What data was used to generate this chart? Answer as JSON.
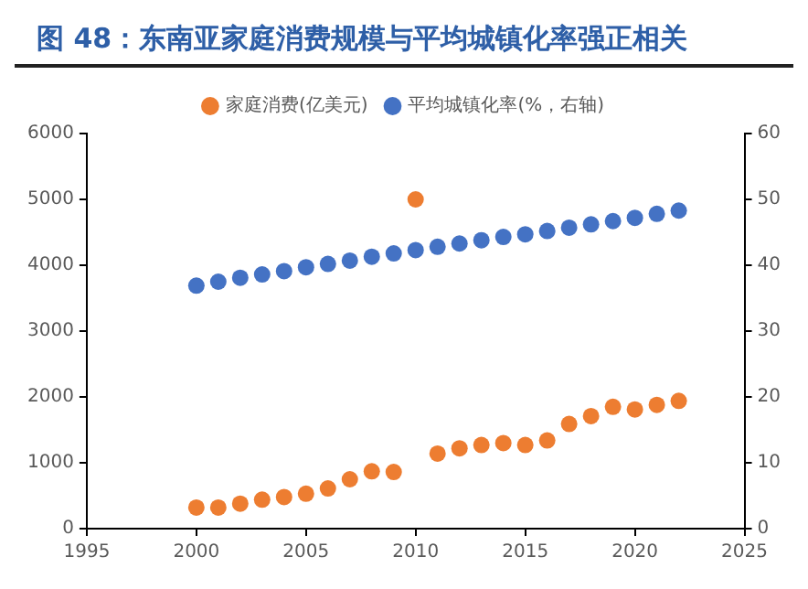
{
  "chart_data": {
    "type": "scatter",
    "title": "图 48：东南亚家庭消费规模与平均城镇化率强正相关",
    "x": [
      2000,
      2001,
      2002,
      2003,
      2004,
      2005,
      2006,
      2007,
      2008,
      2009,
      2010,
      2011,
      2012,
      2013,
      2014,
      2015,
      2016,
      2017,
      2018,
      2019,
      2020,
      2021,
      2022
    ],
    "series": [
      {
        "name": "家庭消费(亿美元)",
        "color": "#ed7d31",
        "values": [
          320,
          320,
          380,
          440,
          480,
          530,
          610,
          750,
          870,
          860,
          5000,
          1140,
          1220,
          1270,
          1300,
          1270,
          1340,
          1590,
          1710,
          1850,
          1810,
          1880,
          1940
        ]
      },
      {
        "name": "平均城镇化率(%，右轴)",
        "color": "#4472c4",
        "axis": "y2",
        "values": [
          36.9,
          37.5,
          38.1,
          38.6,
          39.1,
          39.7,
          40.2,
          40.7,
          41.3,
          41.8,
          42.3,
          42.8,
          43.3,
          43.8,
          44.3,
          44.7,
          45.2,
          45.7,
          46.2,
          46.7,
          47.2,
          47.8,
          48.3
        ]
      }
    ],
    "xlim": [
      1995,
      2025
    ],
    "xticks": [
      1995,
      2000,
      2005,
      2010,
      2015,
      2020,
      2025
    ],
    "ylim": [
      0,
      6000
    ],
    "yticks": [
      0,
      1000,
      2000,
      3000,
      4000,
      5000,
      6000
    ],
    "y2lim": [
      0,
      60
    ],
    "y2ticks": [
      0,
      10,
      20,
      30,
      40,
      50,
      60
    ],
    "legend": "top",
    "marker": "circle",
    "grid": false
  }
}
